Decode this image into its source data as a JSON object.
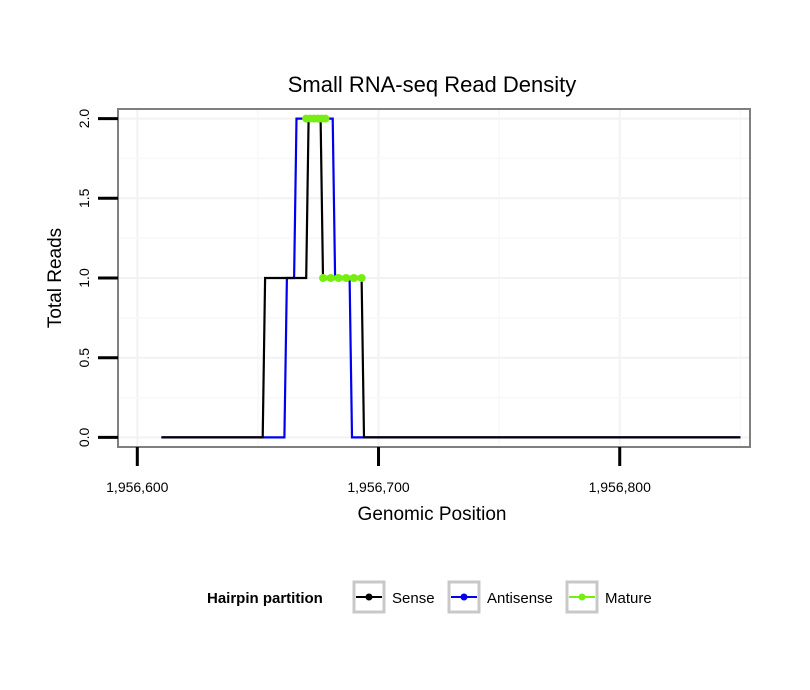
{
  "chart_data": {
    "type": "line",
    "title": "Small RNA-seq Read Density",
    "xlabel": "Genomic Position",
    "ylabel": "Total Reads",
    "xlim": [
      1956592,
      1956854
    ],
    "ylim": [
      -0.06,
      2.06
    ],
    "xticks": [
      1956600,
      1956700,
      1956800
    ],
    "xtick_labels": [
      "1,956,600",
      "1,956,700",
      "1,956,800"
    ],
    "yticks": [
      0,
      0.5,
      1,
      1.5,
      2
    ],
    "ytick_labels": [
      "0.0",
      "0.5",
      "1.0",
      "1.5",
      "2.0"
    ],
    "grid": true,
    "legend": {
      "title": "Hairpin partition",
      "position": "bottom",
      "entries": [
        "Sense",
        "Antisense",
        "Mature"
      ]
    },
    "series": [
      {
        "name": "Sense",
        "color": "#000000",
        "x": [
          1956610,
          1956652,
          1956653,
          1956670,
          1956671,
          1956676,
          1956677,
          1956693,
          1956694,
          1956850
        ],
        "y": [
          0,
          0,
          1,
          1,
          2,
          2,
          1,
          1,
          0,
          0
        ]
      },
      {
        "name": "Antisense",
        "color": "#0000ee",
        "x": [
          1956610,
          1956661,
          1956662,
          1956665,
          1956666,
          1956681,
          1956682,
          1956688,
          1956689,
          1956850
        ],
        "y": [
          0,
          0,
          1,
          1,
          2,
          2,
          1,
          1,
          0,
          0
        ]
      },
      {
        "name": "Mature",
        "color": "#77ee11",
        "segments": [
          {
            "x": [
              1956670,
              1956678
            ],
            "y": [
              2,
              2
            ]
          },
          {
            "x": [
              1956677,
              1956693
            ],
            "y": [
              1,
              1
            ]
          }
        ]
      }
    ]
  }
}
